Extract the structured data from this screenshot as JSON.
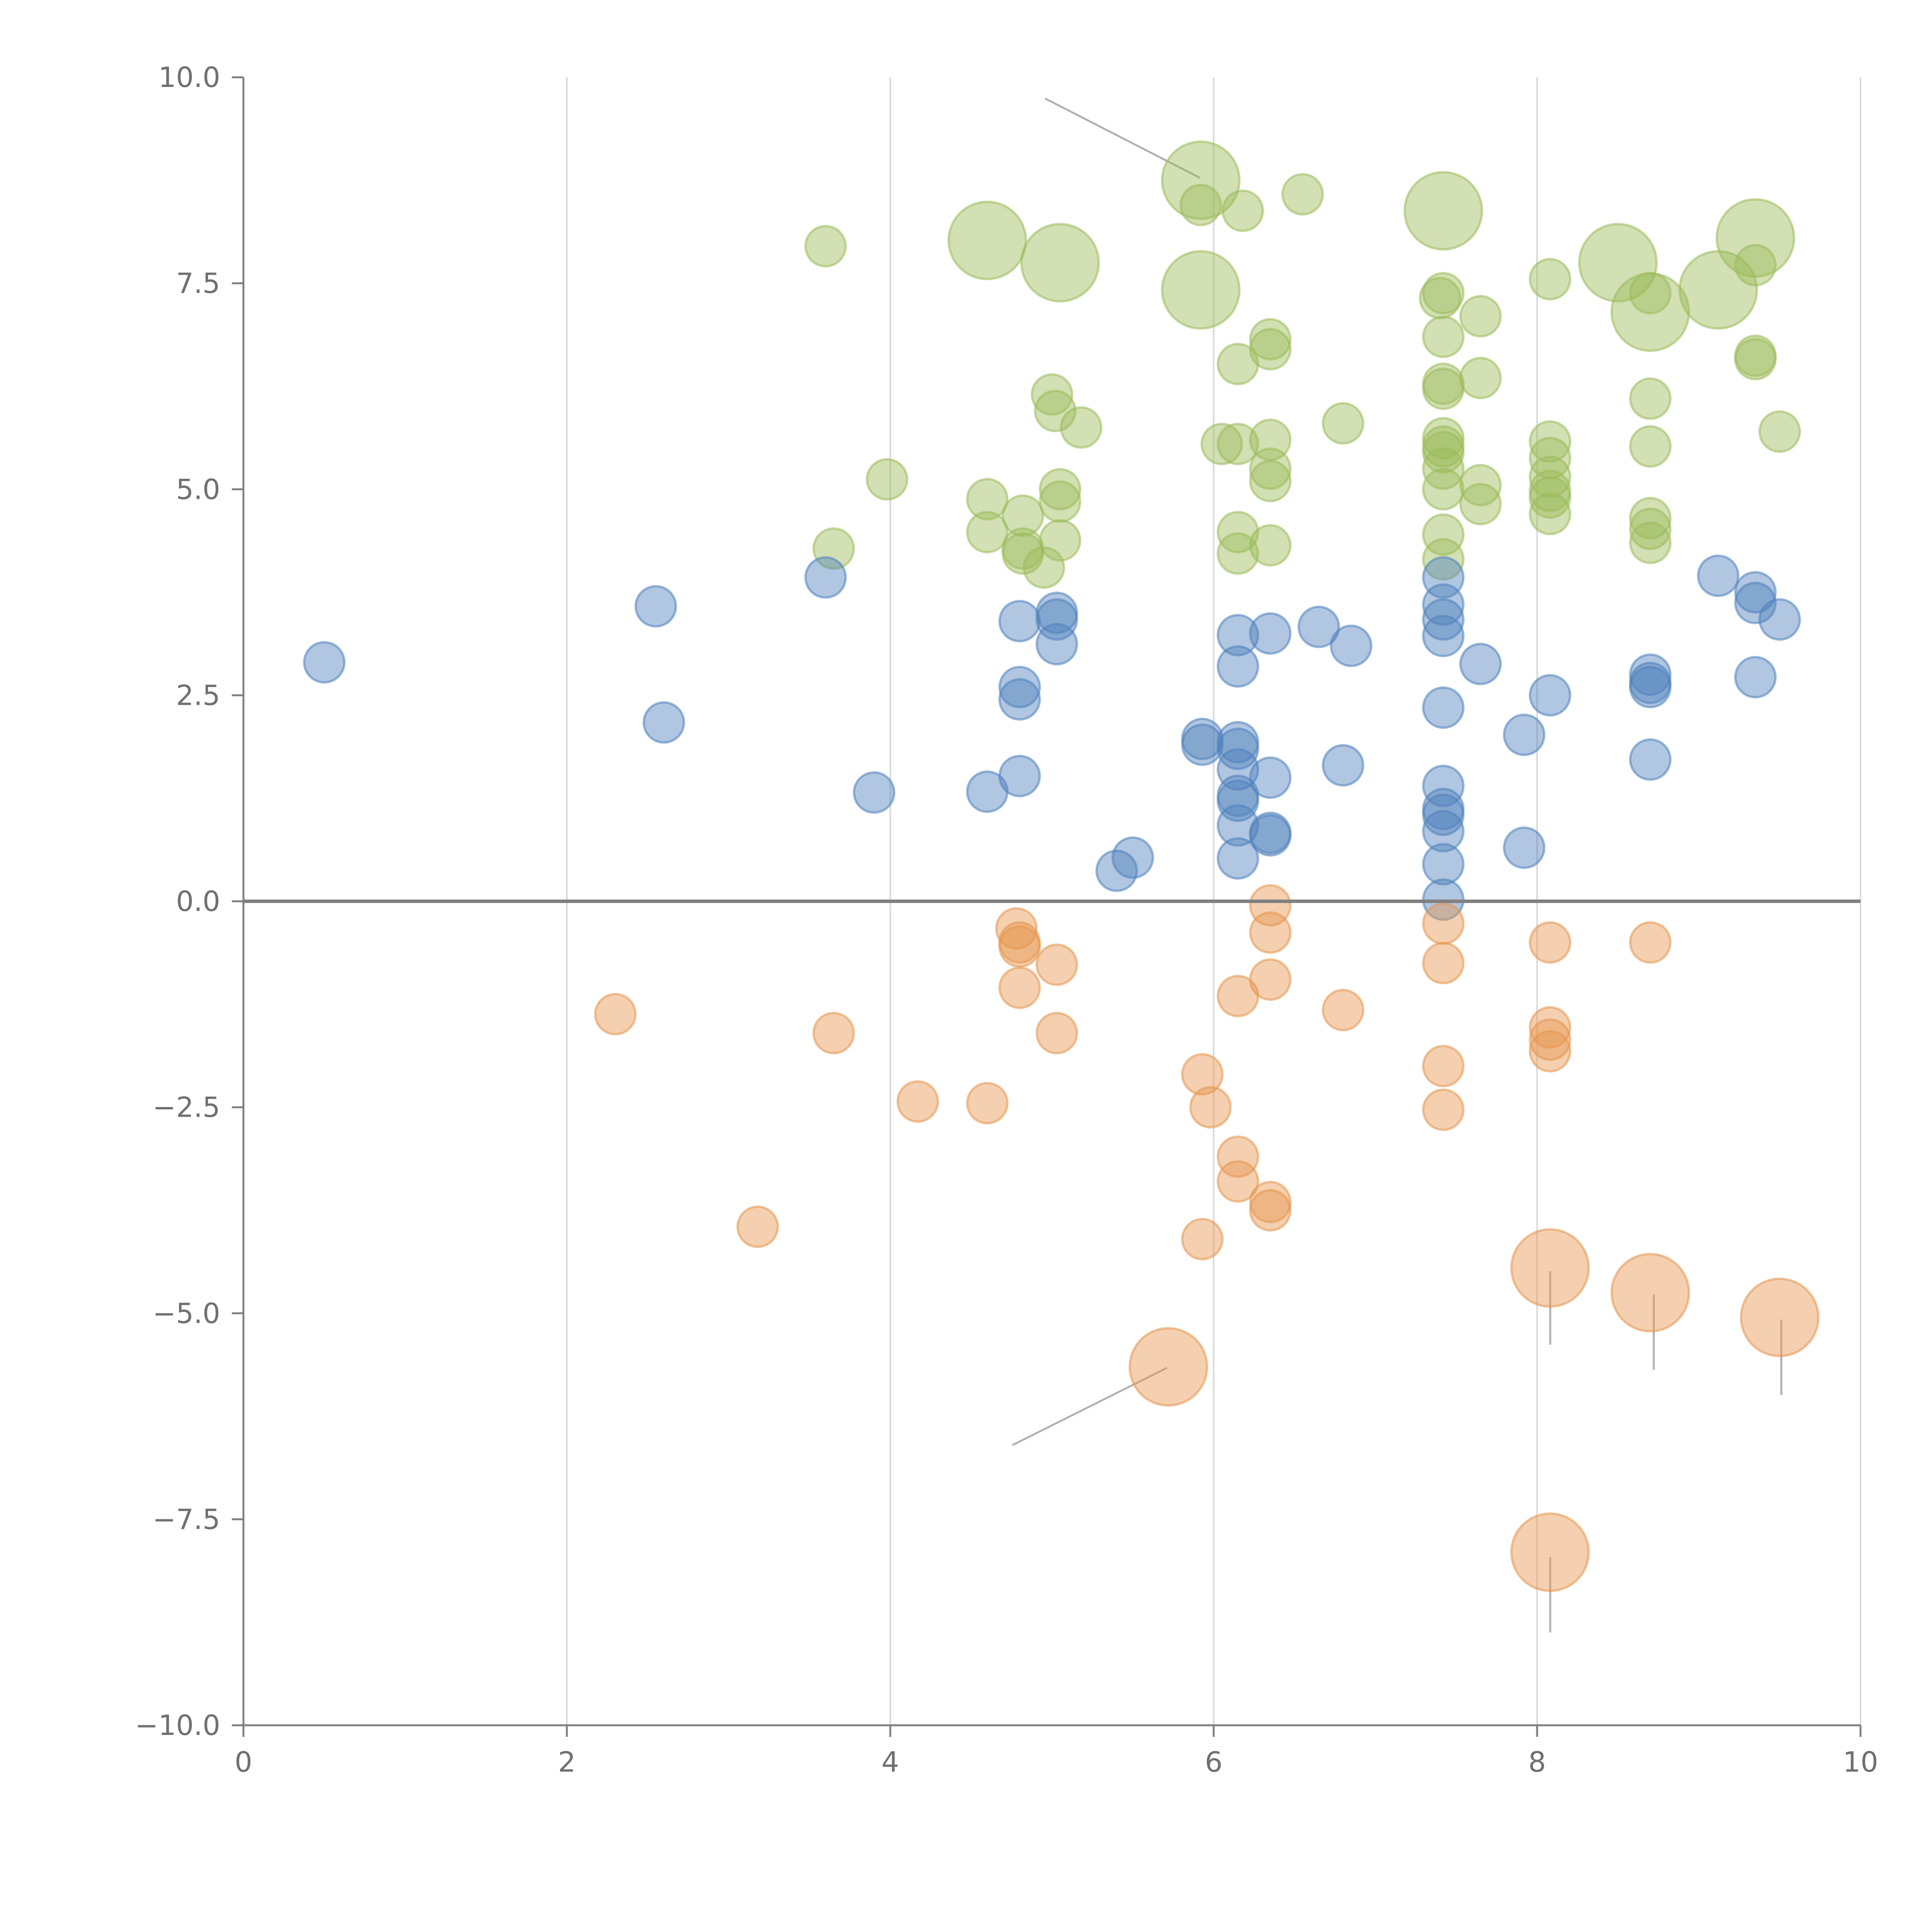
{
  "colors": {
    "green": "#9bbb59",
    "blue": "#4f81bd",
    "orange": "#e6964f",
    "axis": "#808080",
    "grid": "#d9d9d9",
    "tick_text": "#707070"
  },
  "chart_data": {
    "type": "scatter",
    "title": "",
    "xlabel": "",
    "ylabel": "",
    "xlim": [
      0,
      10
    ],
    "ylim": [
      -10,
      10
    ],
    "x_ticks": [
      0,
      2,
      4,
      6,
      8,
      10
    ],
    "x_tick_labels": [
      "0",
      "2",
      "4",
      "6",
      "8",
      "10"
    ],
    "y_ticks": [
      10,
      7.5,
      5,
      2.5,
      0,
      -2.5,
      -5,
      -7.5,
      -10
    ],
    "y_tick_labels": [
      "10.0",
      "7.5",
      "5.0",
      "2.5",
      "0.0",
      "−2.5",
      "−5.0",
      "−7.5",
      "−10.0"
    ],
    "vertical_grid": true,
    "zero_line": true,
    "legend": "none",
    "marker_opacity": 0.45,
    "series": [
      {
        "name": "green",
        "color": "#9bbb59",
        "points": [
          {
            "x": 3.6,
            "y": 7.95,
            "size": 1
          },
          {
            "x": 5.92,
            "y": 8.75,
            "size": 2
          },
          {
            "x": 5.92,
            "y": 8.45,
            "size": 1
          },
          {
            "x": 6.18,
            "y": 8.38,
            "size": 1
          },
          {
            "x": 6.55,
            "y": 8.58,
            "size": 1
          },
          {
            "x": 7.42,
            "y": 8.38,
            "size": 2
          },
          {
            "x": 9.35,
            "y": 8.05,
            "size": 2
          },
          {
            "x": 4.6,
            "y": 8.02,
            "size": 2
          },
          {
            "x": 5.05,
            "y": 7.75,
            "size": 2
          },
          {
            "x": 8.5,
            "y": 7.75,
            "size": 2
          },
          {
            "x": 5.92,
            "y": 7.42,
            "size": 2
          },
          {
            "x": 9.12,
            "y": 7.42,
            "size": 2
          },
          {
            "x": 8.7,
            "y": 7.15,
            "size": 2
          },
          {
            "x": 7.42,
            "y": 7.38,
            "size": 1
          },
          {
            "x": 7.4,
            "y": 7.32,
            "size": 1
          },
          {
            "x": 8.08,
            "y": 7.55,
            "size": 1
          },
          {
            "x": 8.7,
            "y": 7.38,
            "size": 1
          },
          {
            "x": 9.35,
            "y": 7.72,
            "size": 1
          },
          {
            "x": 7.65,
            "y": 7.1,
            "size": 1
          },
          {
            "x": 7.42,
            "y": 6.85,
            "size": 1
          },
          {
            "x": 6.35,
            "y": 6.82,
            "size": 1
          },
          {
            "x": 6.35,
            "y": 6.7,
            "size": 1
          },
          {
            "x": 6.15,
            "y": 6.52,
            "size": 1
          },
          {
            "x": 7.65,
            "y": 6.35,
            "size": 1
          },
          {
            "x": 7.42,
            "y": 6.28,
            "size": 1
          },
          {
            "x": 7.42,
            "y": 6.22,
            "size": 1
          },
          {
            "x": 9.35,
            "y": 6.62,
            "size": 1
          },
          {
            "x": 9.35,
            "y": 6.58,
            "size": 1
          },
          {
            "x": 8.7,
            "y": 6.1,
            "size": 1
          },
          {
            "x": 5.0,
            "y": 6.15,
            "size": 1
          },
          {
            "x": 5.02,
            "y": 5.95,
            "size": 1
          },
          {
            "x": 5.18,
            "y": 5.75,
            "size": 1
          },
          {
            "x": 6.8,
            "y": 5.8,
            "size": 1
          },
          {
            "x": 9.5,
            "y": 5.7,
            "size": 1
          },
          {
            "x": 6.05,
            "y": 5.55,
            "size": 1
          },
          {
            "x": 6.15,
            "y": 5.55,
            "size": 1
          },
          {
            "x": 6.35,
            "y": 5.6,
            "size": 1
          },
          {
            "x": 7.42,
            "y": 5.62,
            "size": 1
          },
          {
            "x": 7.42,
            "y": 5.52,
            "size": 1
          },
          {
            "x": 7.42,
            "y": 5.45,
            "size": 1
          },
          {
            "x": 8.08,
            "y": 5.58,
            "size": 1
          },
          {
            "x": 8.08,
            "y": 5.38,
            "size": 1
          },
          {
            "x": 8.7,
            "y": 5.52,
            "size": 1
          },
          {
            "x": 3.98,
            "y": 5.12,
            "size": 1
          },
          {
            "x": 6.35,
            "y": 5.25,
            "size": 1
          },
          {
            "x": 6.35,
            "y": 5.1,
            "size": 1
          },
          {
            "x": 7.42,
            "y": 5.25,
            "size": 1
          },
          {
            "x": 7.65,
            "y": 5.05,
            "size": 1
          },
          {
            "x": 8.08,
            "y": 5.15,
            "size": 1
          },
          {
            "x": 5.05,
            "y": 5.0,
            "size": 1
          },
          {
            "x": 7.42,
            "y": 5.0,
            "size": 1
          },
          {
            "x": 8.08,
            "y": 4.98,
            "size": 1
          },
          {
            "x": 8.08,
            "y": 4.9,
            "size": 1
          },
          {
            "x": 4.6,
            "y": 4.88,
            "size": 1
          },
          {
            "x": 5.05,
            "y": 4.85,
            "size": 1
          },
          {
            "x": 7.65,
            "y": 4.82,
            "size": 1
          },
          {
            "x": 8.08,
            "y": 4.7,
            "size": 1
          },
          {
            "x": 8.7,
            "y": 4.65,
            "size": 1
          },
          {
            "x": 4.82,
            "y": 4.68,
            "size": 1
          },
          {
            "x": 8.7,
            "y": 4.52,
            "size": 1
          },
          {
            "x": 4.6,
            "y": 4.48,
            "size": 1
          },
          {
            "x": 6.15,
            "y": 4.48,
            "size": 1
          },
          {
            "x": 7.42,
            "y": 4.45,
            "size": 1
          },
          {
            "x": 5.05,
            "y": 4.38,
            "size": 1
          },
          {
            "x": 6.35,
            "y": 4.32,
            "size": 1
          },
          {
            "x": 8.7,
            "y": 4.35,
            "size": 1
          },
          {
            "x": 3.65,
            "y": 4.28,
            "size": 1
          },
          {
            "x": 4.82,
            "y": 4.28,
            "size": 1
          },
          {
            "x": 4.82,
            "y": 4.22,
            "size": 1
          },
          {
            "x": 6.15,
            "y": 4.22,
            "size": 1
          },
          {
            "x": 7.42,
            "y": 4.15,
            "size": 1
          },
          {
            "x": 4.95,
            "y": 4.05,
            "size": 1
          }
        ]
      },
      {
        "name": "blue",
        "color": "#4f81bd",
        "points": [
          {
            "x": 0.5,
            "y": 2.9,
            "size": 1
          },
          {
            "x": 2.55,
            "y": 3.58,
            "size": 1
          },
          {
            "x": 2.6,
            "y": 2.17,
            "size": 1
          },
          {
            "x": 3.6,
            "y": 3.93,
            "size": 1
          },
          {
            "x": 3.9,
            "y": 1.32,
            "size": 1
          },
          {
            "x": 4.6,
            "y": 1.33,
            "size": 1
          },
          {
            "x": 4.8,
            "y": 3.4,
            "size": 1
          },
          {
            "x": 4.8,
            "y": 2.6,
            "size": 1
          },
          {
            "x": 4.8,
            "y": 2.45,
            "size": 1
          },
          {
            "x": 4.8,
            "y": 1.52,
            "size": 1
          },
          {
            "x": 5.03,
            "y": 3.5,
            "size": 1
          },
          {
            "x": 5.03,
            "y": 3.42,
            "size": 1
          },
          {
            "x": 5.03,
            "y": 3.12,
            "size": 1
          },
          {
            "x": 5.4,
            "y": 0.37,
            "size": 1
          },
          {
            "x": 5.5,
            "y": 0.53,
            "size": 1
          },
          {
            "x": 5.93,
            "y": 1.97,
            "size": 1
          },
          {
            "x": 5.93,
            "y": 1.9,
            "size": 1
          },
          {
            "x": 6.15,
            "y": 3.23,
            "size": 1
          },
          {
            "x": 6.15,
            "y": 2.85,
            "size": 1
          },
          {
            "x": 6.15,
            "y": 1.93,
            "size": 1
          },
          {
            "x": 6.15,
            "y": 1.85,
            "size": 1
          },
          {
            "x": 6.15,
            "y": 1.6,
            "size": 1
          },
          {
            "x": 6.15,
            "y": 1.28,
            "size": 1
          },
          {
            "x": 6.15,
            "y": 1.22,
            "size": 1
          },
          {
            "x": 6.15,
            "y": 0.92,
            "size": 1
          },
          {
            "x": 6.15,
            "y": 0.52,
            "size": 1
          },
          {
            "x": 6.35,
            "y": 3.25,
            "size": 1
          },
          {
            "x": 6.35,
            "y": 1.5,
            "size": 1
          },
          {
            "x": 6.35,
            "y": 0.83,
            "size": 1
          },
          {
            "x": 6.35,
            "y": 0.8,
            "size": 1
          },
          {
            "x": 6.65,
            "y": 3.33,
            "size": 1
          },
          {
            "x": 6.8,
            "y": 1.65,
            "size": 1
          },
          {
            "x": 6.85,
            "y": 3.1,
            "size": 1
          },
          {
            "x": 7.42,
            "y": 3.93,
            "size": 1
          },
          {
            "x": 7.42,
            "y": 3.6,
            "size": 1
          },
          {
            "x": 7.42,
            "y": 3.42,
            "size": 1
          },
          {
            "x": 7.42,
            "y": 3.22,
            "size": 1
          },
          {
            "x": 7.42,
            "y": 2.35,
            "size": 1
          },
          {
            "x": 7.42,
            "y": 1.4,
            "size": 1
          },
          {
            "x": 7.42,
            "y": 1.12,
            "size": 1
          },
          {
            "x": 7.42,
            "y": 1.05,
            "size": 1
          },
          {
            "x": 7.42,
            "y": 0.85,
            "size": 1
          },
          {
            "x": 7.42,
            "y": 0.45,
            "size": 1
          },
          {
            "x": 7.42,
            "y": 0.02,
            "size": 1
          },
          {
            "x": 7.65,
            "y": 2.88,
            "size": 1
          },
          {
            "x": 7.92,
            "y": 2.02,
            "size": 1
          },
          {
            "x": 7.92,
            "y": 0.65,
            "size": 1
          },
          {
            "x": 8.08,
            "y": 2.5,
            "size": 1
          },
          {
            "x": 8.7,
            "y": 2.75,
            "size": 1
          },
          {
            "x": 8.7,
            "y": 2.65,
            "size": 1
          },
          {
            "x": 8.7,
            "y": 2.6,
            "size": 1
          },
          {
            "x": 8.7,
            "y": 1.72,
            "size": 1
          },
          {
            "x": 9.12,
            "y": 3.95,
            "size": 1
          },
          {
            "x": 9.35,
            "y": 3.75,
            "size": 1
          },
          {
            "x": 9.35,
            "y": 3.62,
            "size": 1
          },
          {
            "x": 9.35,
            "y": 2.72,
            "size": 1
          },
          {
            "x": 9.5,
            "y": 3.42,
            "size": 1
          }
        ]
      },
      {
        "name": "orange",
        "color": "#e6964f",
        "points": [
          {
            "x": 2.3,
            "y": -1.37,
            "size": 1
          },
          {
            "x": 3.18,
            "y": -3.95,
            "size": 1
          },
          {
            "x": 3.65,
            "y": -1.6,
            "size": 1
          },
          {
            "x": 4.17,
            "y": -2.43,
            "size": 1
          },
          {
            "x": 4.6,
            "y": -2.45,
            "size": 1
          },
          {
            "x": 4.78,
            "y": -0.33,
            "size": 1
          },
          {
            "x": 4.8,
            "y": -0.5,
            "size": 1
          },
          {
            "x": 4.8,
            "y": -0.55,
            "size": 1
          },
          {
            "x": 4.8,
            "y": -1.05,
            "size": 1
          },
          {
            "x": 5.03,
            "y": -0.77,
            "size": 1
          },
          {
            "x": 5.03,
            "y": -1.6,
            "size": 1
          },
          {
            "x": 5.72,
            "y": -5.65,
            "size": 2
          },
          {
            "x": 5.93,
            "y": -2.1,
            "size": 1
          },
          {
            "x": 5.98,
            "y": -2.5,
            "size": 1
          },
          {
            "x": 5.93,
            "y": -4.1,
            "size": 1
          },
          {
            "x": 6.15,
            "y": -1.15,
            "size": 1
          },
          {
            "x": 6.15,
            "y": -3.1,
            "size": 1
          },
          {
            "x": 6.15,
            "y": -3.4,
            "size": 1
          },
          {
            "x": 6.35,
            "y": -0.05,
            "size": 1
          },
          {
            "x": 6.35,
            "y": -0.38,
            "size": 1
          },
          {
            "x": 6.35,
            "y": -0.95,
            "size": 1
          },
          {
            "x": 6.35,
            "y": -3.65,
            "size": 1
          },
          {
            "x": 6.35,
            "y": -3.75,
            "size": 1
          },
          {
            "x": 6.8,
            "y": -1.32,
            "size": 1
          },
          {
            "x": 7.42,
            "y": -0.27,
            "size": 1
          },
          {
            "x": 7.42,
            "y": -0.75,
            "size": 1
          },
          {
            "x": 7.42,
            "y": -2.0,
            "size": 1
          },
          {
            "x": 7.42,
            "y": -2.53,
            "size": 1
          },
          {
            "x": 8.08,
            "y": -0.5,
            "size": 1
          },
          {
            "x": 8.08,
            "y": -1.53,
            "size": 1
          },
          {
            "x": 8.08,
            "y": -1.68,
            "size": 1
          },
          {
            "x": 8.08,
            "y": -1.82,
            "size": 1
          },
          {
            "x": 8.08,
            "y": -4.45,
            "size": 2
          },
          {
            "x": 8.08,
            "y": -7.9,
            "size": 2
          },
          {
            "x": 8.7,
            "y": -0.5,
            "size": 1
          },
          {
            "x": 8.7,
            "y": -4.75,
            "size": 2
          },
          {
            "x": 9.5,
            "y": -5.05,
            "size": 2
          }
        ]
      }
    ]
  }
}
